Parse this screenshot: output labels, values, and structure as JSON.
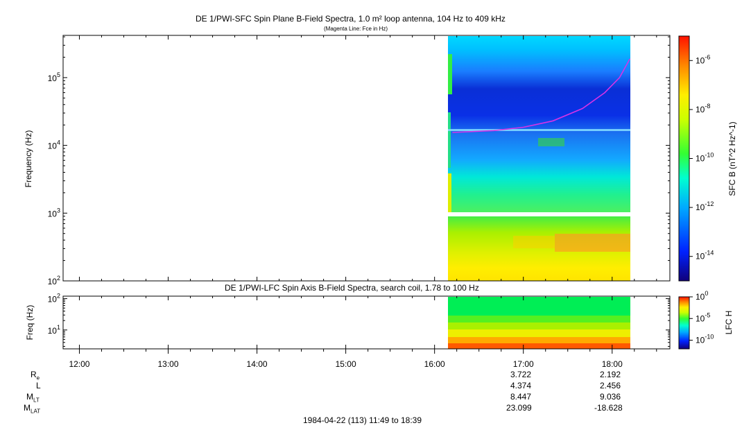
{
  "chart_data": [
    {
      "type": "heatmap",
      "title": "DE 1/PWI-SFC  Spin Plane B-Field Spectra, 1.0 m² loop antenna, 104 Hz to 409 kHz",
      "subtitle": "(Magenta Line: Fce in Hz)",
      "ylabel": "Frequency (Hz)",
      "yscale": "log",
      "ylim": [
        100,
        420000
      ],
      "y_ticks": [
        "10^2",
        "10^3",
        "10^4",
        "10^5"
      ],
      "xlim": [
        "11:49",
        "18:39"
      ],
      "data_extent_x": [
        "16:10",
        "18:13"
      ],
      "colorbar": {
        "label": "SFC B (nT^2 Hz^-1)",
        "scale": "log",
        "range": [
          "1e-15",
          "1e-5"
        ],
        "ticks": [
          "10^-6",
          "10^-8",
          "10^-10",
          "10^-12",
          "10^-14"
        ]
      },
      "overlay_line": {
        "name": "Fce",
        "color": "#d633e6",
        "points": [
          [
            "16:12",
            15500
          ],
          [
            "16:40",
            16500
          ],
          [
            "17:00",
            18500
          ],
          [
            "17:20",
            23000
          ],
          [
            "17:40",
            35000
          ],
          [
            "17:55",
            60000
          ],
          [
            "18:05",
            100000
          ],
          [
            "18:12",
            190000
          ]
        ]
      }
    },
    {
      "type": "heatmap",
      "title": "DE 1/PWI-LFC  Spin Axis B-Field Spectra, search coil, 1.78 to 100 Hz",
      "ylabel": "Freq (Hz)",
      "yscale": "log",
      "ylim": [
        2.5,
        120
      ],
      "y_ticks": [
        "10^1",
        "10^2"
      ],
      "data_extent_x": [
        "16:10",
        "18:13"
      ],
      "colorbar": {
        "label": "LFC H",
        "scale": "log",
        "range": [
          "1e-12",
          "1e0"
        ],
        "ticks": [
          "10^0",
          "10^-5",
          "10^-10"
        ]
      }
    }
  ],
  "x_ticks": [
    "12:00",
    "13:00",
    "14:00",
    "15:00",
    "16:00",
    "17:00",
    "18:00"
  ],
  "ephemeris": {
    "labels": [
      "R",
      "L",
      "M",
      "M"
    ],
    "label_subs": [
      "e",
      "",
      "LT",
      "LAT"
    ],
    "values": [
      [
        "3.722",
        "4.374",
        "8.447",
        "23.099"
      ],
      [
        "2.192",
        "2.456",
        "9.036",
        "-18.628"
      ]
    ]
  },
  "footer": "1984-04-22 (113) 11:49 to 18:39"
}
